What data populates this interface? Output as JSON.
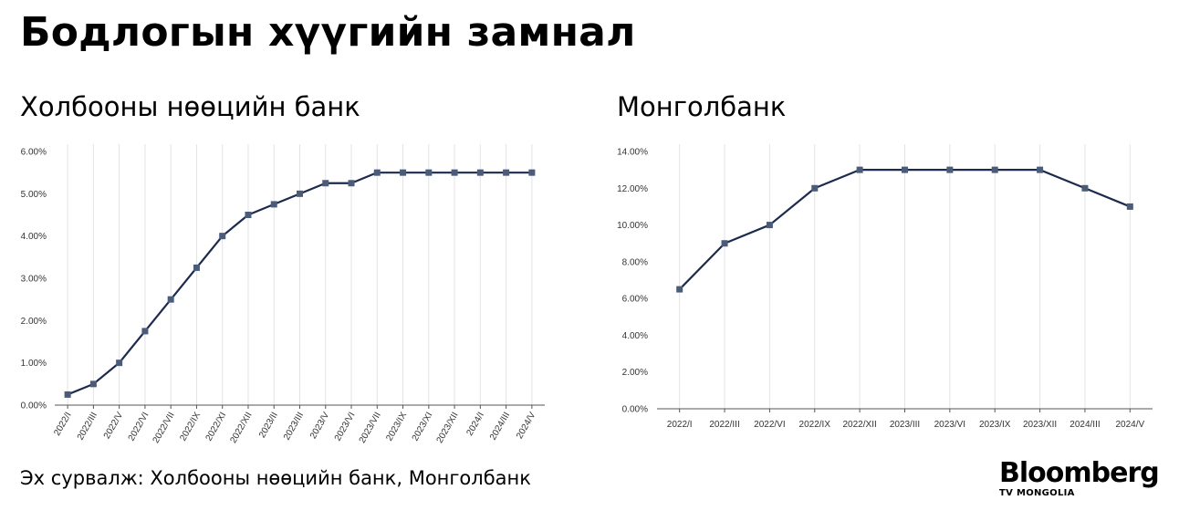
{
  "header": {
    "title": "Бодлогын хүүгийн замнал"
  },
  "source_text": "Эх сурвалж: Холбооны нөөцийн банк, Монголбанк",
  "logo": {
    "main": "Bloomberg",
    "sub": "TV MONGOLIA"
  },
  "colors": {
    "line": "#1c2a4e",
    "marker": "#4b5c7a",
    "grid": "#e3e3e3",
    "axis": "#555555"
  },
  "chart_data": [
    {
      "type": "line",
      "title": "Холбооны нөөцийн банк",
      "categories": [
        "2022/I",
        "2022/III",
        "2022/V",
        "2022/VI",
        "2022/VII",
        "2022/IX",
        "2022/XI",
        "2022/XII",
        "2023/II",
        "2023/III",
        "2023/V",
        "2023/VI",
        "2023/VII",
        "2023/IX",
        "2023/XI",
        "2023/XII",
        "2024/I",
        "2024/III",
        "2024/V"
      ],
      "values": [
        0.25,
        0.5,
        1.0,
        1.75,
        2.5,
        3.25,
        4.0,
        4.5,
        4.75,
        5.0,
        5.25,
        5.25,
        5.5,
        5.5,
        5.5,
        5.5,
        5.5,
        5.5,
        5.5
      ],
      "ylim": [
        0,
        6
      ],
      "yticks": [
        "0.00%",
        "1.00%",
        "2.00%",
        "3.00%",
        "4.00%",
        "5.00%",
        "6.00%"
      ],
      "xlabel": "",
      "ylabel": "",
      "grid": "vertical",
      "xtick_rotation": "rotated"
    },
    {
      "type": "line",
      "title": "Монголбанк",
      "categories": [
        "2022/I",
        "2022/III",
        "2022/VI",
        "2022/IX",
        "2022/XII",
        "2023/III",
        "2023/VI",
        "2023/IX",
        "2023/XII",
        "2024/III",
        "2024/V"
      ],
      "values": [
        6.5,
        9.0,
        10.0,
        12.0,
        13.0,
        13.0,
        13.0,
        13.0,
        13.0,
        12.0,
        11.0
      ],
      "ylim": [
        0,
        14
      ],
      "yticks": [
        "0.00%",
        "2.00%",
        "4.00%",
        "6.00%",
        "8.00%",
        "10.00%",
        "12.00%",
        "14.00%"
      ],
      "xlabel": "",
      "ylabel": "",
      "grid": "vertical",
      "xtick_rotation": "horizontal"
    }
  ]
}
